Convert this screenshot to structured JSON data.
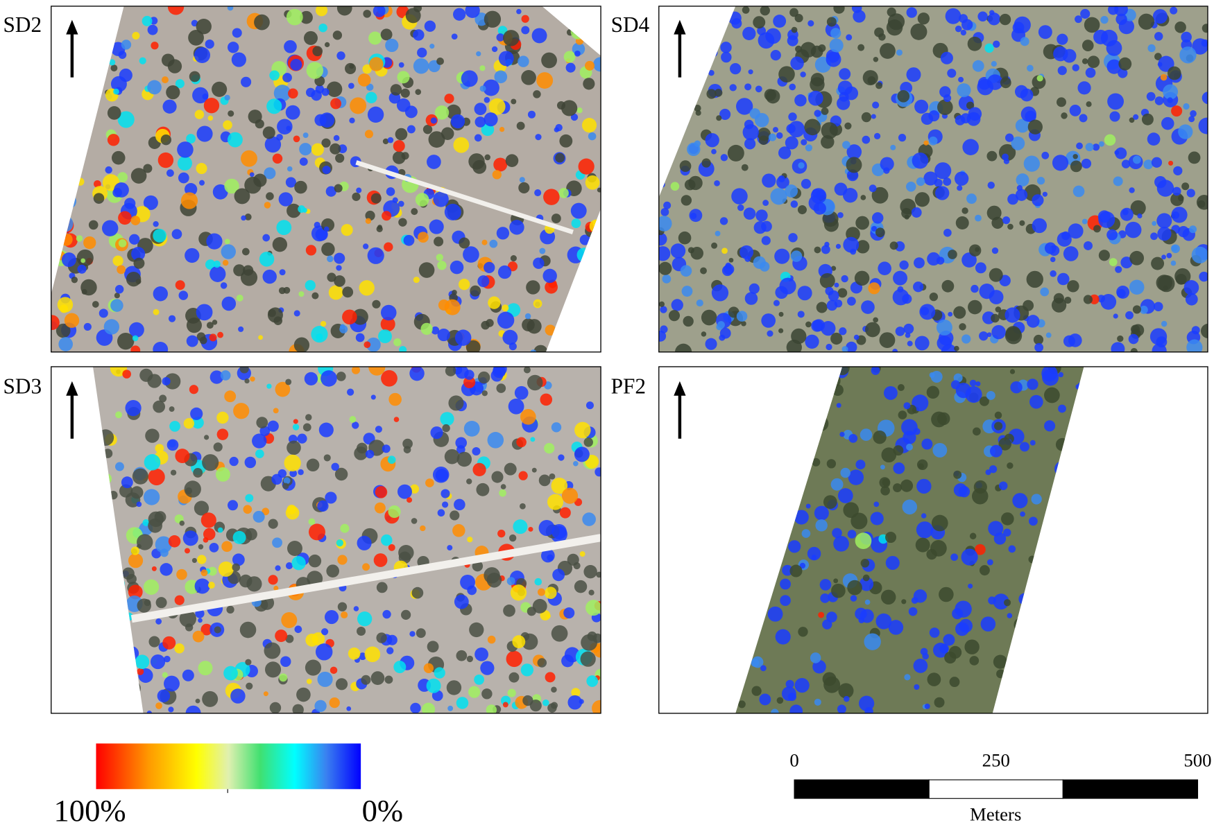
{
  "panels": [
    {
      "label": "SD2"
    },
    {
      "label": "SD4"
    },
    {
      "label": "SD3"
    },
    {
      "label": "PF2"
    }
  ],
  "legend": {
    "ticks": [
      {
        "value": 100,
        "label": "100%"
      },
      {
        "value": 0,
        "label": "0%"
      }
    ]
  },
  "scale_bar": {
    "ticks": [
      0,
      250,
      500
    ],
    "unit": "Meters"
  }
}
